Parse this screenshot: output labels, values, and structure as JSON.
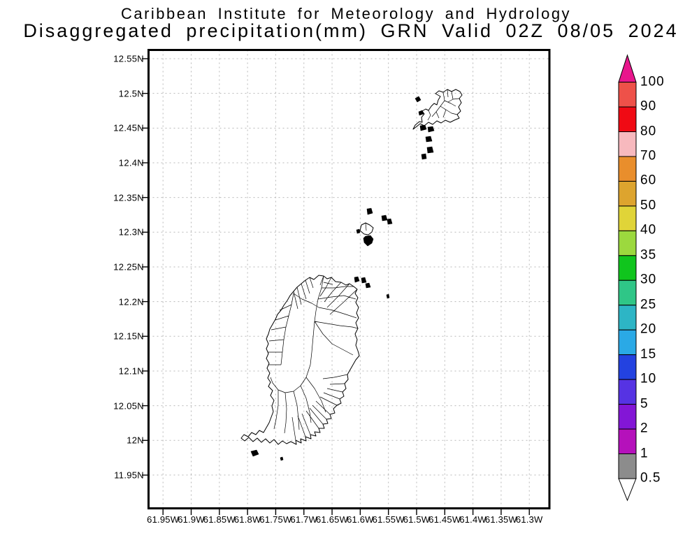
{
  "title": {
    "line1": "Caribbean Institute for Meteorology and Hydrology",
    "line2": "Disaggregated precipitation(mm) GRN Valid 02Z 08/05 2024"
  },
  "map": {
    "y_axis_labels": [
      "12.55N",
      "12.5N",
      "12.45N",
      "12.4N",
      "12.35N",
      "12.3N",
      "12.25N",
      "12.2N",
      "12.15N",
      "12.1N",
      "12.05N",
      "12N",
      "11.95N"
    ],
    "x_axis_labels": [
      "61.95W",
      "61.9W",
      "61.85W",
      "61.8W",
      "61.75W",
      "61.7W",
      "61.65W",
      "61.6W",
      "61.55W",
      "61.5W",
      "61.45W",
      "61.4W",
      "61.35W",
      "61.3W"
    ]
  },
  "colorbar": {
    "tick_labels": [
      "100",
      "90",
      "80",
      "70",
      "60",
      "50",
      "40",
      "35",
      "30",
      "25",
      "20",
      "15",
      "10",
      "5",
      "2",
      "1",
      "0.5"
    ],
    "segment_colors": [
      "#ee5149",
      "#f00a14",
      "#f7b9be",
      "#e98e2c",
      "#dda42e",
      "#e0d438",
      "#9cd93e",
      "#10c51d",
      "#2fc687",
      "#2db5c5",
      "#2aa9e6",
      "#2342e0",
      "#5633e3",
      "#8316d6",
      "#b511bb",
      "#8c8c8c"
    ],
    "top_arrow_color": "#e8168c",
    "bottom_arrow_color": "#ffffff",
    "frame_color": "#000000"
  },
  "colors": {
    "grid": "#b8b8b8",
    "frame": "#000000",
    "land_outline": "#000000"
  }
}
